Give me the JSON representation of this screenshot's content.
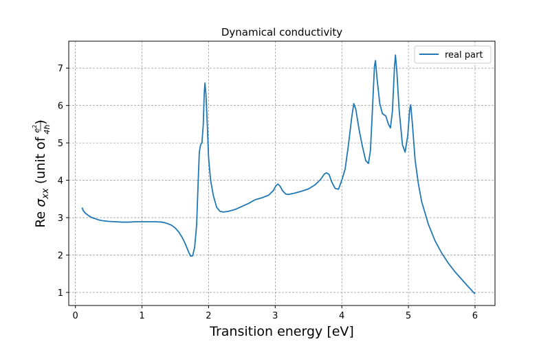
{
  "chart_data": {
    "type": "line",
    "title": "Dynamical conductivity",
    "xlabel": "Transition energy [eV]",
    "ylabel": {
      "prefix": "Re ",
      "sigma": "σ",
      "subscript": "xx",
      "unit_open": " (unit of ",
      "numerator": "e",
      "numerator_sup": "2",
      "denominator": "4ℏ",
      "unit_close": ")"
    },
    "xlim": [
      -0.1,
      6.3
    ],
    "ylim": [
      0.65,
      7.72
    ],
    "xticks": [
      0,
      1,
      2,
      3,
      4,
      5,
      6
    ],
    "yticks": [
      1,
      2,
      3,
      4,
      5,
      6,
      7
    ],
    "grid": true,
    "legend_position": "top-right",
    "series": [
      {
        "name": "real part",
        "color": "#1f77b4",
        "points": [
          [
            0.1,
            3.27
          ],
          [
            0.12,
            3.18
          ],
          [
            0.15,
            3.12
          ],
          [
            0.2,
            3.05
          ],
          [
            0.25,
            3.0
          ],
          [
            0.3,
            2.97
          ],
          [
            0.35,
            2.94
          ],
          [
            0.4,
            2.92
          ],
          [
            0.5,
            2.9
          ],
          [
            0.6,
            2.89
          ],
          [
            0.7,
            2.88
          ],
          [
            0.8,
            2.88
          ],
          [
            0.9,
            2.89
          ],
          [
            1.0,
            2.89
          ],
          [
            1.1,
            2.89
          ],
          [
            1.2,
            2.89
          ],
          [
            1.3,
            2.88
          ],
          [
            1.35,
            2.86
          ],
          [
            1.4,
            2.83
          ],
          [
            1.45,
            2.79
          ],
          [
            1.5,
            2.72
          ],
          [
            1.55,
            2.62
          ],
          [
            1.6,
            2.48
          ],
          [
            1.65,
            2.3
          ],
          [
            1.7,
            2.08
          ],
          [
            1.73,
            1.97
          ],
          [
            1.76,
            1.98
          ],
          [
            1.79,
            2.2
          ],
          [
            1.82,
            2.8
          ],
          [
            1.84,
            3.8
          ],
          [
            1.86,
            4.75
          ],
          [
            1.88,
            4.95
          ],
          [
            1.9,
            5.0
          ],
          [
            1.92,
            5.5
          ],
          [
            1.935,
            6.35
          ],
          [
            1.945,
            6.6
          ],
          [
            1.96,
            6.3
          ],
          [
            1.98,
            5.5
          ],
          [
            2.0,
            4.6
          ],
          [
            2.03,
            4.0
          ],
          [
            2.07,
            3.6
          ],
          [
            2.12,
            3.28
          ],
          [
            2.17,
            3.17
          ],
          [
            2.22,
            3.15
          ],
          [
            2.3,
            3.17
          ],
          [
            2.4,
            3.22
          ],
          [
            2.5,
            3.3
          ],
          [
            2.6,
            3.38
          ],
          [
            2.7,
            3.48
          ],
          [
            2.8,
            3.53
          ],
          [
            2.9,
            3.6
          ],
          [
            2.97,
            3.72
          ],
          [
            3.01,
            3.85
          ],
          [
            3.04,
            3.9
          ],
          [
            3.07,
            3.85
          ],
          [
            3.11,
            3.72
          ],
          [
            3.16,
            3.63
          ],
          [
            3.2,
            3.62
          ],
          [
            3.3,
            3.66
          ],
          [
            3.4,
            3.71
          ],
          [
            3.5,
            3.77
          ],
          [
            3.6,
            3.88
          ],
          [
            3.68,
            4.02
          ],
          [
            3.74,
            4.17
          ],
          [
            3.77,
            4.2
          ],
          [
            3.81,
            4.15
          ],
          [
            3.85,
            3.95
          ],
          [
            3.9,
            3.78
          ],
          [
            3.95,
            3.76
          ],
          [
            4.0,
            4.0
          ],
          [
            4.05,
            4.3
          ],
          [
            4.1,
            4.95
          ],
          [
            4.15,
            5.7
          ],
          [
            4.18,
            6.05
          ],
          [
            4.21,
            5.9
          ],
          [
            4.26,
            5.35
          ],
          [
            4.31,
            4.9
          ],
          [
            4.36,
            4.52
          ],
          [
            4.4,
            4.45
          ],
          [
            4.43,
            4.8
          ],
          [
            4.46,
            5.9
          ],
          [
            4.49,
            7.05
          ],
          [
            4.505,
            7.2
          ],
          [
            4.53,
            6.7
          ],
          [
            4.57,
            6.05
          ],
          [
            4.61,
            5.78
          ],
          [
            4.66,
            5.72
          ],
          [
            4.7,
            5.5
          ],
          [
            4.73,
            5.4
          ],
          [
            4.76,
            5.85
          ],
          [
            4.79,
            7.0
          ],
          [
            4.805,
            7.35
          ],
          [
            4.825,
            6.95
          ],
          [
            4.86,
            5.9
          ],
          [
            4.91,
            4.95
          ],
          [
            4.95,
            4.75
          ],
          [
            4.99,
            5.2
          ],
          [
            5.02,
            5.9
          ],
          [
            5.035,
            6.02
          ],
          [
            5.06,
            5.5
          ],
          [
            5.1,
            4.55
          ],
          [
            5.15,
            3.9
          ],
          [
            5.2,
            3.42
          ],
          [
            5.3,
            2.82
          ],
          [
            5.4,
            2.38
          ],
          [
            5.5,
            2.05
          ],
          [
            5.6,
            1.78
          ],
          [
            5.7,
            1.55
          ],
          [
            5.8,
            1.35
          ],
          [
            5.9,
            1.15
          ],
          [
            6.0,
            0.96
          ]
        ]
      }
    ]
  }
}
